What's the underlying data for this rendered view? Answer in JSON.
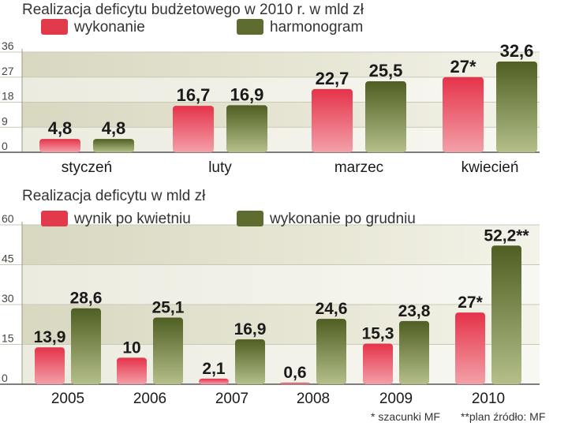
{
  "chart_data": [
    {
      "type": "bar",
      "title": "Realizacja deficytu budżetowego w 2010 r. w mld zł",
      "categories": [
        "styczeń",
        "luty",
        "marzec",
        "kwiecień"
      ],
      "series": [
        {
          "name": "wykonanie",
          "values": [
            4.8,
            16.7,
            22.7,
            27
          ],
          "labels": [
            "4,8",
            "16,7",
            "22,7",
            "27*"
          ]
        },
        {
          "name": "harmonogram",
          "values": [
            4.8,
            16.9,
            25.5,
            32.6
          ],
          "labels": [
            "4,8",
            "16,9",
            "25,5",
            "32,6"
          ]
        }
      ],
      "yticks": [
        "0",
        "9",
        "18",
        "27",
        "36"
      ],
      "ylim": [
        0,
        36
      ],
      "legend": "top-left",
      "grid": false
    },
    {
      "type": "bar",
      "title": "Realizacja deficytu w mld zł",
      "categories": [
        "2005",
        "2006",
        "2007",
        "2008",
        "2009",
        "2010"
      ],
      "series": [
        {
          "name": "wynik po kwietniu",
          "values": [
            13.9,
            10,
            2.1,
            0.6,
            15.3,
            27
          ],
          "labels": [
            "13,9",
            "10",
            "2,1",
            "0,6",
            "15,3",
            "27*"
          ]
        },
        {
          "name": "wykonanie po grudniu",
          "values": [
            28.6,
            25.1,
            16.9,
            24.6,
            23.8,
            52.2
          ],
          "labels": [
            "28,6",
            "25,1",
            "16,9",
            "24,6",
            "23,8",
            "52,2**"
          ]
        }
      ],
      "yticks": [
        "0",
        "15",
        "30",
        "45",
        "60"
      ],
      "ylim": [
        0,
        60
      ],
      "legend": "top-left",
      "grid": false
    }
  ],
  "footnotes": {
    "left": "* szacunki MF",
    "right": "**plan  źródło: MF"
  },
  "colors": {
    "red": "#e0303f",
    "green": "#5b6b2a"
  }
}
